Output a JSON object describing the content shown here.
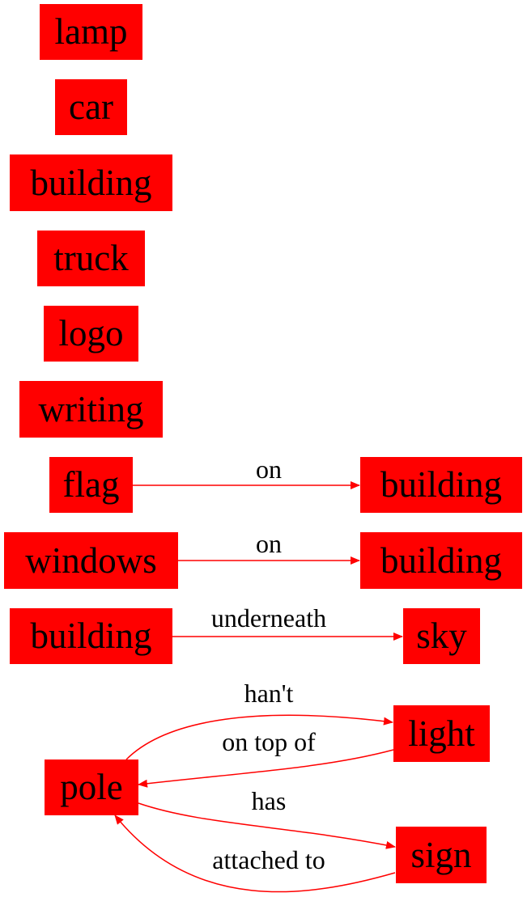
{
  "colors": {
    "node_fill": "#ff0000",
    "edge_stroke": "#ff0000",
    "text": "#000000",
    "background": "#ffffff"
  },
  "nodes": {
    "lamp": "lamp",
    "car": "car",
    "building_1": "building",
    "truck": "truck",
    "logo": "logo",
    "writing": "writing",
    "flag": "flag",
    "building_2": "building",
    "windows": "windows",
    "building_3": "building",
    "building_4": "building",
    "sky": "sky",
    "light": "light",
    "pole": "pole",
    "sign": "sign"
  },
  "edges": [
    {
      "from": "flag",
      "to": "building_2",
      "label": "on"
    },
    {
      "from": "windows",
      "to": "building_3",
      "label": "on"
    },
    {
      "from": "building_4",
      "to": "sky",
      "label": "underneath"
    },
    {
      "from": "pole",
      "to": "light",
      "label": "han't"
    },
    {
      "from": "light",
      "to": "pole",
      "label": "on top of"
    },
    {
      "from": "pole",
      "to": "sign",
      "label": "has"
    },
    {
      "from": "sign",
      "to": "pole",
      "label": "attached to"
    }
  ]
}
